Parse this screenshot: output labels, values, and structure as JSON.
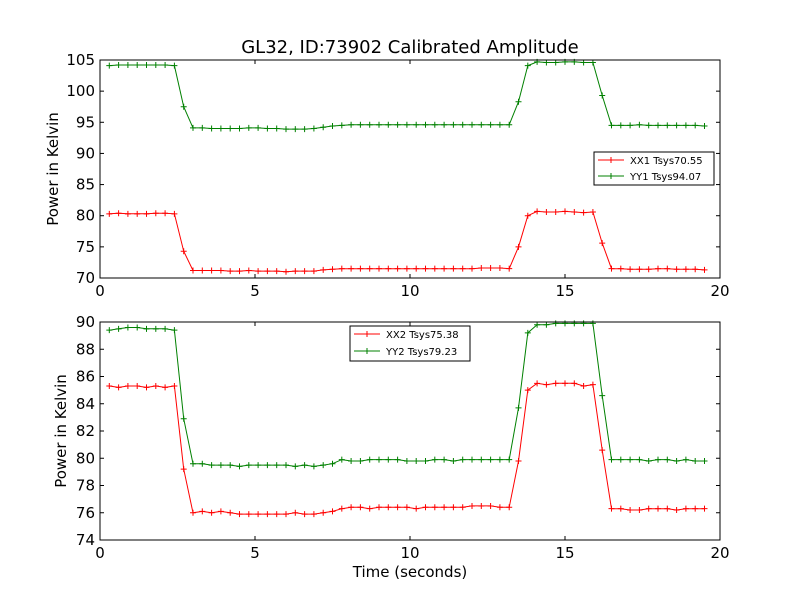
{
  "chart_data": [
    {
      "type": "line",
      "title": "GL32, ID:73902 Calibrated Amplitude",
      "xlabel": "",
      "ylabel": "Power in Kelvin",
      "xlim": [
        0,
        20
      ],
      "ylim": [
        70,
        105
      ],
      "xticks": [
        0,
        5,
        10,
        15,
        20
      ],
      "yticks": [
        70,
        75,
        80,
        85,
        90,
        95,
        100,
        105
      ],
      "grid": false,
      "legend_position": "center-right",
      "x": [
        0.3,
        0.6,
        0.9,
        1.2,
        1.5,
        1.8,
        2.1,
        2.4,
        2.7,
        3.0,
        3.3,
        3.6,
        3.9,
        4.2,
        4.5,
        4.8,
        5.1,
        5.4,
        5.7,
        6.0,
        6.3,
        6.6,
        6.9,
        7.2,
        7.5,
        7.8,
        8.1,
        8.4,
        8.7,
        9.0,
        9.3,
        9.6,
        9.9,
        10.2,
        10.5,
        10.8,
        11.1,
        11.4,
        11.7,
        12.0,
        12.3,
        12.6,
        12.9,
        13.2,
        13.5,
        13.8,
        14.1,
        14.4,
        14.7,
        15.0,
        15.3,
        15.6,
        15.9,
        16.2,
        16.5,
        16.8,
        17.1,
        17.4,
        17.7,
        18.0,
        18.3,
        18.6,
        18.9,
        19.2,
        19.5
      ],
      "series": [
        {
          "name": "XX1 Tsys70.55",
          "color": "#ff0000",
          "values": [
            80.3,
            80.4,
            80.3,
            80.3,
            80.3,
            80.4,
            80.4,
            80.3,
            74.3,
            71.2,
            71.2,
            71.2,
            71.2,
            71.1,
            71.1,
            71.2,
            71.1,
            71.1,
            71.1,
            71.0,
            71.1,
            71.1,
            71.1,
            71.3,
            71.4,
            71.5,
            71.5,
            71.5,
            71.5,
            71.5,
            71.5,
            71.5,
            71.5,
            71.5,
            71.5,
            71.5,
            71.5,
            71.5,
            71.5,
            71.5,
            71.6,
            71.6,
            71.6,
            71.5,
            75.0,
            80.0,
            80.7,
            80.6,
            80.6,
            80.7,
            80.6,
            80.5,
            80.6,
            75.6,
            71.5,
            71.5,
            71.4,
            71.4,
            71.4,
            71.5,
            71.5,
            71.4,
            71.4,
            71.4,
            71.3
          ]
        },
        {
          "name": "YY1 Tsys94.07",
          "color": "#008000",
          "values": [
            104.1,
            104.2,
            104.2,
            104.2,
            104.2,
            104.2,
            104.2,
            104.1,
            97.5,
            94.1,
            94.1,
            94.0,
            94.0,
            94.0,
            94.0,
            94.1,
            94.1,
            94.0,
            94.0,
            93.9,
            93.9,
            93.9,
            94.0,
            94.2,
            94.4,
            94.5,
            94.6,
            94.6,
            94.6,
            94.6,
            94.6,
            94.6,
            94.6,
            94.6,
            94.6,
            94.6,
            94.6,
            94.6,
            94.6,
            94.6,
            94.6,
            94.6,
            94.6,
            94.6,
            98.3,
            104.1,
            104.7,
            104.6,
            104.6,
            104.7,
            104.7,
            104.6,
            104.6,
            99.3,
            94.5,
            94.5,
            94.5,
            94.6,
            94.5,
            94.5,
            94.5,
            94.5,
            94.5,
            94.5,
            94.4
          ]
        }
      ]
    },
    {
      "type": "line",
      "title": "",
      "xlabel": "Time (seconds)",
      "ylabel": "Power in Kelvin",
      "xlim": [
        0,
        20
      ],
      "ylim": [
        74,
        90
      ],
      "xticks": [
        0,
        5,
        10,
        15,
        20
      ],
      "yticks": [
        74,
        76,
        78,
        80,
        82,
        84,
        86,
        88,
        90
      ],
      "grid": false,
      "legend_position": "top-center",
      "x": [
        0.3,
        0.6,
        0.9,
        1.2,
        1.5,
        1.8,
        2.1,
        2.4,
        2.7,
        3.0,
        3.3,
        3.6,
        3.9,
        4.2,
        4.5,
        4.8,
        5.1,
        5.4,
        5.7,
        6.0,
        6.3,
        6.6,
        6.9,
        7.2,
        7.5,
        7.8,
        8.1,
        8.4,
        8.7,
        9.0,
        9.3,
        9.6,
        9.9,
        10.2,
        10.5,
        10.8,
        11.1,
        11.4,
        11.7,
        12.0,
        12.3,
        12.6,
        12.9,
        13.2,
        13.5,
        13.8,
        14.1,
        14.4,
        14.7,
        15.0,
        15.3,
        15.6,
        15.9,
        16.2,
        16.5,
        16.8,
        17.1,
        17.4,
        17.7,
        18.0,
        18.3,
        18.6,
        18.9,
        19.2,
        19.5
      ],
      "series": [
        {
          "name": "XX2 Tsys75.38",
          "color": "#ff0000",
          "values": [
            85.3,
            85.2,
            85.3,
            85.3,
            85.2,
            85.3,
            85.2,
            85.3,
            79.2,
            76.0,
            76.1,
            76.0,
            76.1,
            76.0,
            75.9,
            75.9,
            75.9,
            75.9,
            75.9,
            75.9,
            76.0,
            75.9,
            75.9,
            76.0,
            76.1,
            76.3,
            76.4,
            76.4,
            76.3,
            76.4,
            76.4,
            76.4,
            76.4,
            76.3,
            76.4,
            76.4,
            76.4,
            76.4,
            76.4,
            76.5,
            76.5,
            76.5,
            76.4,
            76.4,
            79.8,
            85.0,
            85.5,
            85.4,
            85.5,
            85.5,
            85.5,
            85.3,
            85.4,
            80.6,
            76.3,
            76.3,
            76.2,
            76.2,
            76.3,
            76.3,
            76.3,
            76.2,
            76.3,
            76.3,
            76.3
          ]
        },
        {
          "name": "YY2 Tsys79.23",
          "color": "#008000",
          "values": [
            89.4,
            89.5,
            89.6,
            89.6,
            89.5,
            89.5,
            89.5,
            89.4,
            82.9,
            79.6,
            79.6,
            79.5,
            79.5,
            79.5,
            79.4,
            79.5,
            79.5,
            79.5,
            79.5,
            79.5,
            79.4,
            79.5,
            79.4,
            79.5,
            79.6,
            79.9,
            79.8,
            79.8,
            79.9,
            79.9,
            79.9,
            79.9,
            79.8,
            79.8,
            79.8,
            79.9,
            79.9,
            79.8,
            79.9,
            79.9,
            79.9,
            79.9,
            79.9,
            79.9,
            83.7,
            89.2,
            89.8,
            89.8,
            89.9,
            89.9,
            89.9,
            89.9,
            89.9,
            84.6,
            79.9,
            79.9,
            79.9,
            79.9,
            79.8,
            79.9,
            79.9,
            79.8,
            79.9,
            79.8,
            79.8
          ]
        }
      ]
    }
  ]
}
